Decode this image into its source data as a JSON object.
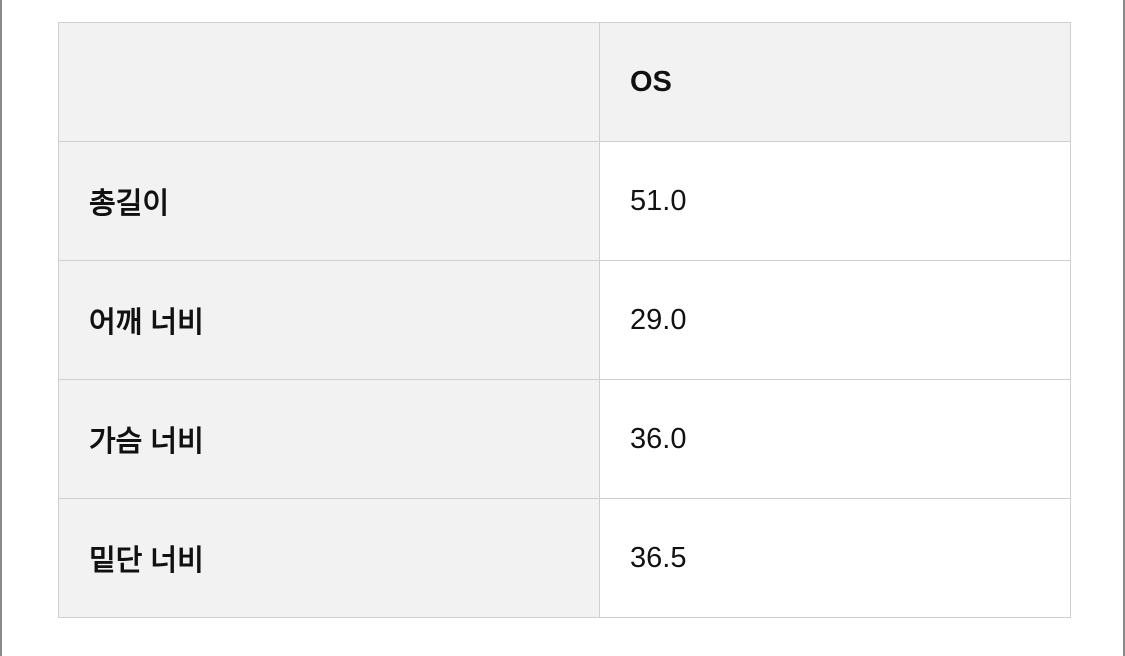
{
  "table": {
    "header": [
      "",
      "OS"
    ],
    "rows": [
      {
        "label": "총길이",
        "value": "51.0"
      },
      {
        "label": "어깨 너비",
        "value": "29.0"
      },
      {
        "label": "가슴 너비",
        "value": "36.0"
      },
      {
        "label": "밑단 너비",
        "value": "36.5"
      }
    ]
  }
}
